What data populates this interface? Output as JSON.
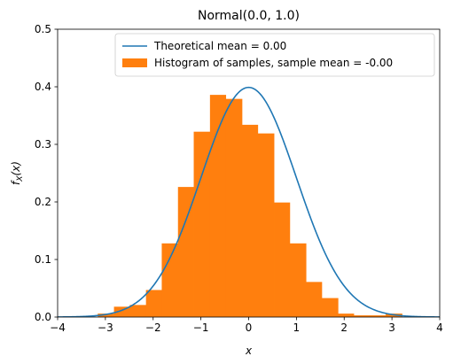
{
  "chart_data": {
    "type": "bar",
    "title": "Normal(0.0, 1.0)",
    "xlabel": "x",
    "ylabel": "f_X(x)",
    "xlim": [
      -4,
      4
    ],
    "ylim": [
      0,
      0.5
    ],
    "xticks": [
      -4,
      -3,
      -2,
      -1,
      0,
      1,
      2,
      3,
      4
    ],
    "xtick_labels": [
      "−4",
      "−3",
      "−2",
      "−1",
      "0",
      "1",
      "2",
      "3",
      "4"
    ],
    "yticks": [
      0,
      0.1,
      0.2,
      0.3,
      0.4,
      0.5
    ],
    "ytick_labels": [
      "0.0",
      "0.1",
      "0.2",
      "0.3",
      "0.4",
      "0.5"
    ],
    "grid": false,
    "legend_position": "top-right",
    "colors": {
      "curve": "#1f77b4",
      "histogram": "#ff7f0e"
    },
    "series": [
      {
        "name": "Theoretical mean = 0.00",
        "kind": "line",
        "function": "normal_pdf",
        "mean": 0.0,
        "std": 1.0
      },
      {
        "name": "Histogram of samples, sample mean = -0.00",
        "kind": "histogram",
        "bin_edges": [
          -3.5,
          -3.16,
          -2.82,
          -2.49,
          -2.15,
          -1.82,
          -1.48,
          -1.15,
          -0.81,
          -0.48,
          -0.14,
          0.19,
          0.53,
          0.86,
          1.2,
          1.53,
          1.87,
          2.2,
          2.54,
          2.87,
          3.21,
          3.54
        ],
        "values": [
          0.0,
          0.006,
          0.018,
          0.021,
          0.047,
          0.128,
          0.226,
          0.322,
          0.386,
          0.379,
          0.334,
          0.319,
          0.199,
          0.128,
          0.061,
          0.033,
          0.006,
          0.003,
          0.003,
          0.006,
          0.0
        ]
      }
    ]
  }
}
